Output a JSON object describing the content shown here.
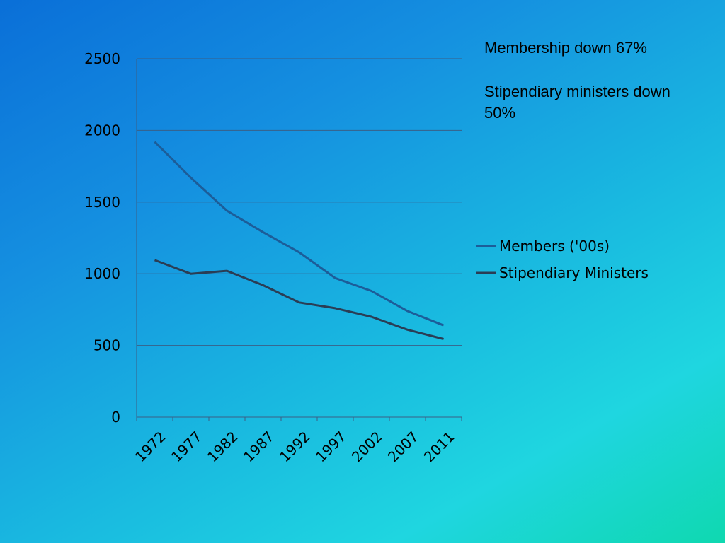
{
  "notes": {
    "membership": "Membership down 67%",
    "ministers": "Stipendiary ministers down 50%"
  },
  "chart_data": {
    "type": "line",
    "title": "",
    "xlabel": "",
    "ylabel": "",
    "ylim": [
      0,
      2500
    ],
    "yticks": [
      0,
      500,
      1000,
      1500,
      2000,
      2500
    ],
    "x_tick_labels": [
      "1972",
      "1977",
      "1982",
      "1987",
      "1992",
      "1997",
      "2002",
      "2007",
      "2011"
    ],
    "grid": "horizontal",
    "legend_position": "right",
    "series": [
      {
        "name": "Members ('00s)",
        "color": "#1c5d99",
        "values": [
          1920,
          1670,
          1440,
          1290,
          1150,
          970,
          880,
          740,
          640
        ]
      },
      {
        "name": "Stipendiary Ministers",
        "color": "#2a3d55",
        "values": [
          1095,
          1000,
          1020,
          920,
          800,
          760,
          700,
          610,
          545
        ]
      }
    ]
  }
}
